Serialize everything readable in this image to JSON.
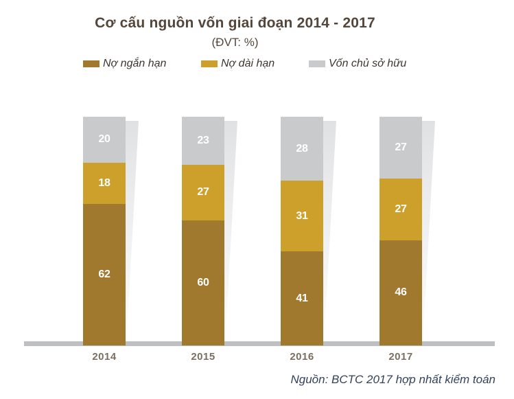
{
  "title": "Cơ cấu nguồn vốn giai đoạn 2014 - 2017",
  "subtitle": "(ĐVT: %)",
  "source": "Nguồn: BCTC 2017 hợp nhất kiểm toán",
  "colors": {
    "short_term_debt": "#a0782e",
    "long_term_debt": "#cda02b",
    "equity": "#c9cacc",
    "axis_line": "#bdbfc1",
    "title_text": "#54463a",
    "year_text": "#7b6e60",
    "legend_text": "#3c362e",
    "value_text": "#ffffff",
    "source_text": "#33415c"
  },
  "chart_data": {
    "type": "bar",
    "stacked": true,
    "unit": "%",
    "title": "Cơ cấu nguồn vốn giai đoạn 2014 - 2017",
    "subtitle": "(ĐVT: %)",
    "categories": [
      "2014",
      "2015",
      "2016",
      "2017"
    ],
    "series": [
      {
        "name": "Nợ ngắn hạn",
        "color": "#a0782e",
        "values": [
          62,
          60,
          41,
          46
        ]
      },
      {
        "name": "Nợ dài hạn",
        "color": "#cda02b",
        "values": [
          18,
          27,
          31,
          27
        ]
      },
      {
        "name": "Vốn chủ sở hữu",
        "color": "#c9cacc",
        "values": [
          20,
          23,
          28,
          27
        ]
      }
    ],
    "legend_position": "top",
    "grid": false,
    "value_labels": true,
    "xlabel": "",
    "ylabel": "",
    "source_note": "Nguồn: BCTC 2017 hợp nhất kiểm toán"
  }
}
